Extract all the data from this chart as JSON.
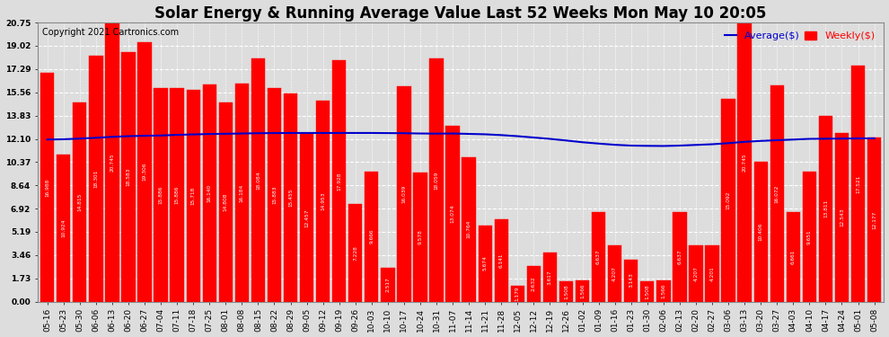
{
  "title": "Solar Energy & Running Average Value Last 52 Weeks Mon May 10 20:05",
  "copyright": "Copyright 2021 Cartronics.com",
  "legend_average": "Average($)",
  "legend_weekly": "Weekly($)",
  "bar_color": "#FF0000",
  "avg_line_color": "#0000CC",
  "background_color": "#DDDDDD",
  "grid_color": "white",
  "ytick_values": [
    0.0,
    1.73,
    3.46,
    5.19,
    6.92,
    8.64,
    10.37,
    12.1,
    13.83,
    15.56,
    17.29,
    19.02,
    20.75
  ],
  "categories": [
    "05-16",
    "05-23",
    "05-30",
    "06-06",
    "06-13",
    "06-20",
    "06-27",
    "07-04",
    "07-11",
    "07-18",
    "07-25",
    "08-01",
    "08-08",
    "08-15",
    "08-22",
    "08-29",
    "09-05",
    "09-12",
    "09-19",
    "09-26",
    "10-03",
    "10-10",
    "10-17",
    "10-24",
    "10-31",
    "11-07",
    "11-14",
    "11-21",
    "11-28",
    "12-05",
    "12-12",
    "12-19",
    "12-26",
    "01-02",
    "01-09",
    "01-16",
    "01-23",
    "01-30",
    "02-06",
    "02-13",
    "02-20",
    "02-27",
    "03-06",
    "03-13",
    "03-20",
    "03-27",
    "04-03",
    "04-10",
    "04-17",
    "04-24",
    "05-01",
    "05-08"
  ],
  "weekly_values": [
    16.988,
    10.924,
    14.815,
    18.301,
    20.745,
    18.583,
    19.306,
    15.886,
    15.886,
    15.718,
    16.14,
    14.808,
    16.184,
    18.084,
    15.883,
    15.455,
    12.457,
    14.953,
    17.928,
    7.228,
    9.666,
    2.517,
    16.039,
    9.578,
    18.059,
    13.074,
    10.764,
    5.674,
    6.141,
    1.179,
    2.632,
    3.617,
    1.508,
    1.566,
    6.637,
    4.207,
    3.143,
    1.508,
    1.566,
    6.637,
    4.207,
    4.201,
    15.092,
    20.745,
    10.406,
    16.072,
    6.661,
    9.651,
    13.811,
    12.543,
    17.521,
    12.177
  ],
  "avg_values": [
    12.05,
    12.07,
    12.12,
    12.18,
    12.25,
    12.3,
    12.33,
    12.35,
    12.4,
    12.43,
    12.46,
    12.48,
    12.5,
    12.52,
    12.53,
    12.54,
    12.54,
    12.54,
    12.54,
    12.54,
    12.54,
    12.53,
    12.52,
    12.5,
    12.49,
    12.5,
    12.47,
    12.44,
    12.38,
    12.3,
    12.2,
    12.1,
    11.98,
    11.85,
    11.75,
    11.66,
    11.6,
    11.58,
    11.57,
    11.6,
    11.65,
    11.7,
    11.78,
    11.88,
    11.95,
    12.0,
    12.05,
    12.1,
    12.11,
    12.12,
    12.13,
    12.14
  ],
  "title_fontsize": 12,
  "copyright_fontsize": 7,
  "tick_fontsize": 6.5,
  "legend_fontsize": 8
}
